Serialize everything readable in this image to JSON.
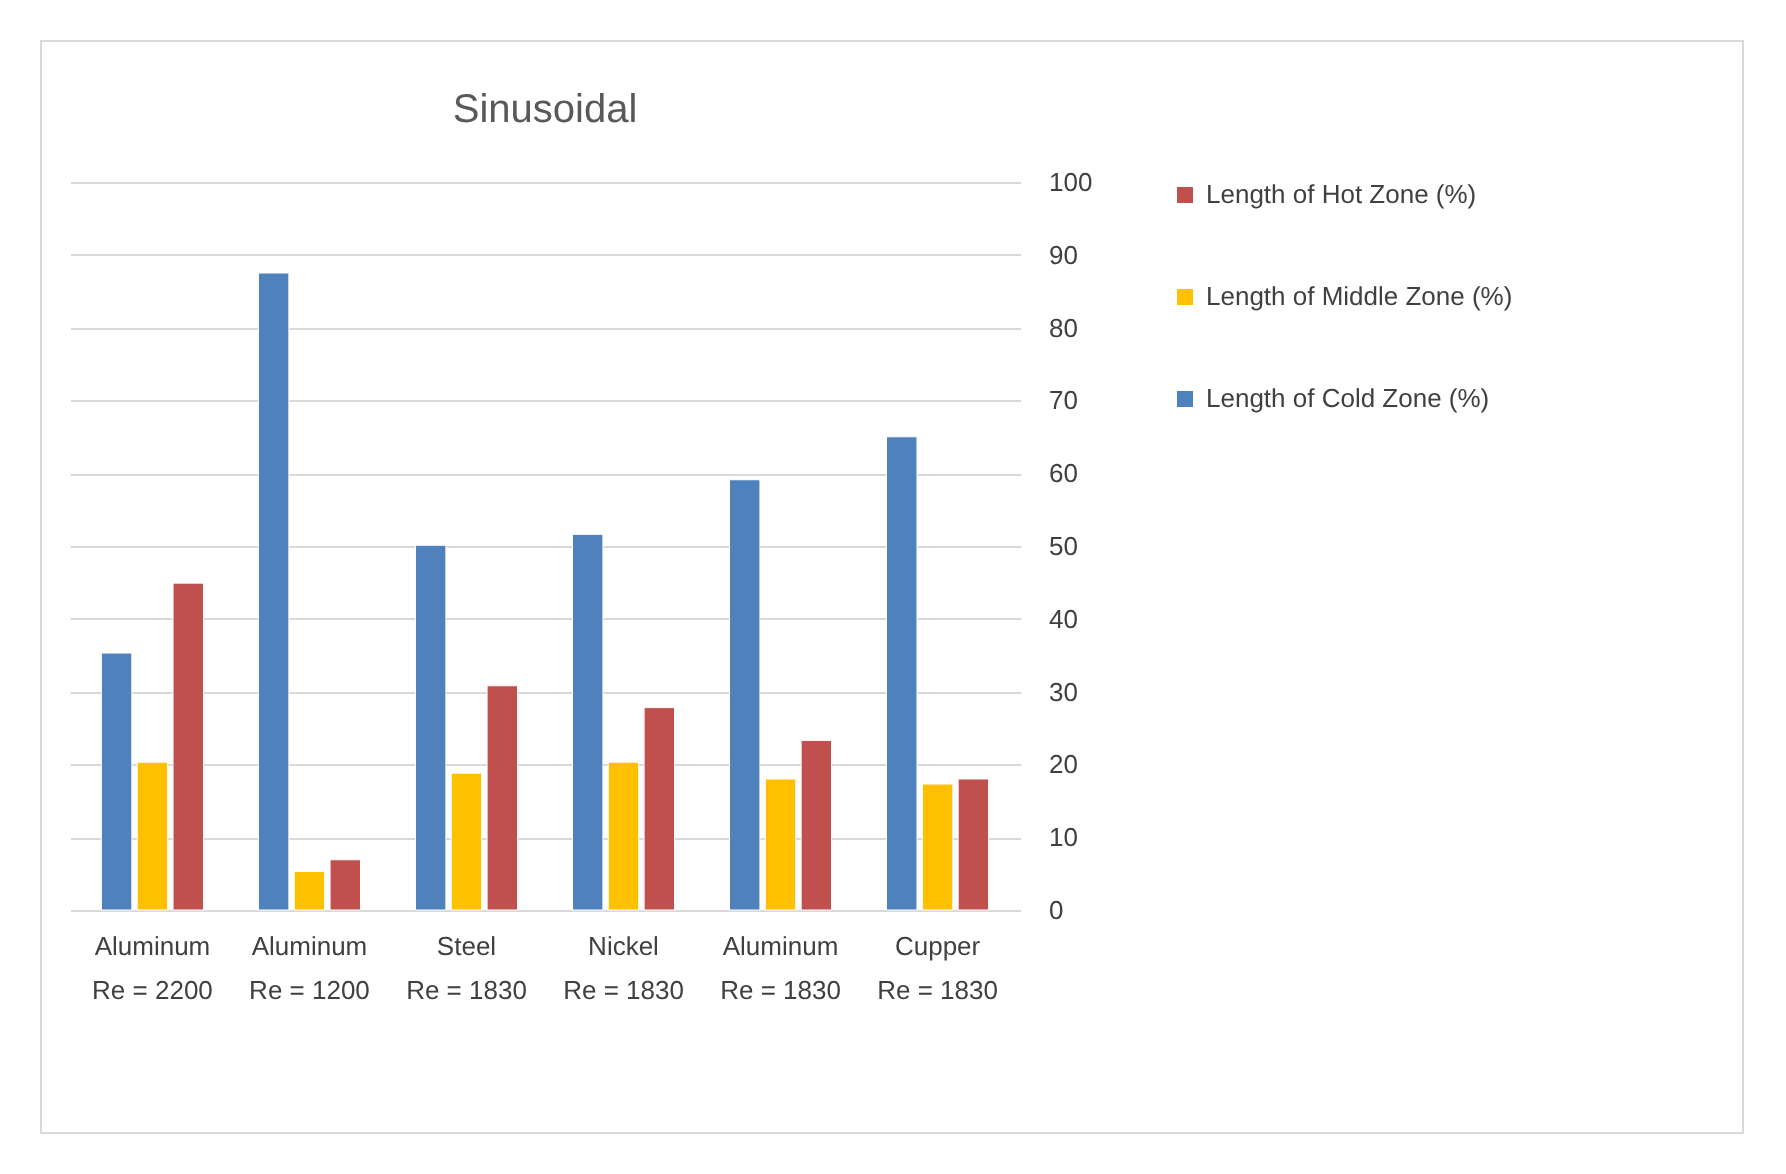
{
  "chart_data": {
    "type": "bar",
    "title": "Sinusoidal",
    "categories": [
      "Aluminum\nRe = 2200",
      "Aluminum\nRe = 1200",
      "Steel\nRe = 1830",
      "Nickel\nRe = 1830",
      "Aluminum\nRe = 1830",
      "Cupper\nRe = 1830"
    ],
    "series": [
      {
        "name": "Length of Cold Zone (%)",
        "color": "#4f81bd",
        "values": [
          35.3,
          87.5,
          50.1,
          51.6,
          59.1,
          65.0
        ]
      },
      {
        "name": "Length of Middle Zone (%)",
        "color": "#ffc000",
        "values": [
          20.3,
          5.3,
          18.8,
          20.3,
          18.0,
          17.3
        ]
      },
      {
        "name": "Length of Hot Zone (%)",
        "color": "#c0504d",
        "values": [
          44.9,
          6.9,
          30.8,
          27.8,
          23.3,
          18.0
        ]
      }
    ],
    "ylim": [
      0,
      100
    ],
    "yticks": [
      0,
      10,
      20,
      30,
      40,
      50,
      60,
      70,
      80,
      90,
      100
    ],
    "grid": "y",
    "legend": "right"
  }
}
